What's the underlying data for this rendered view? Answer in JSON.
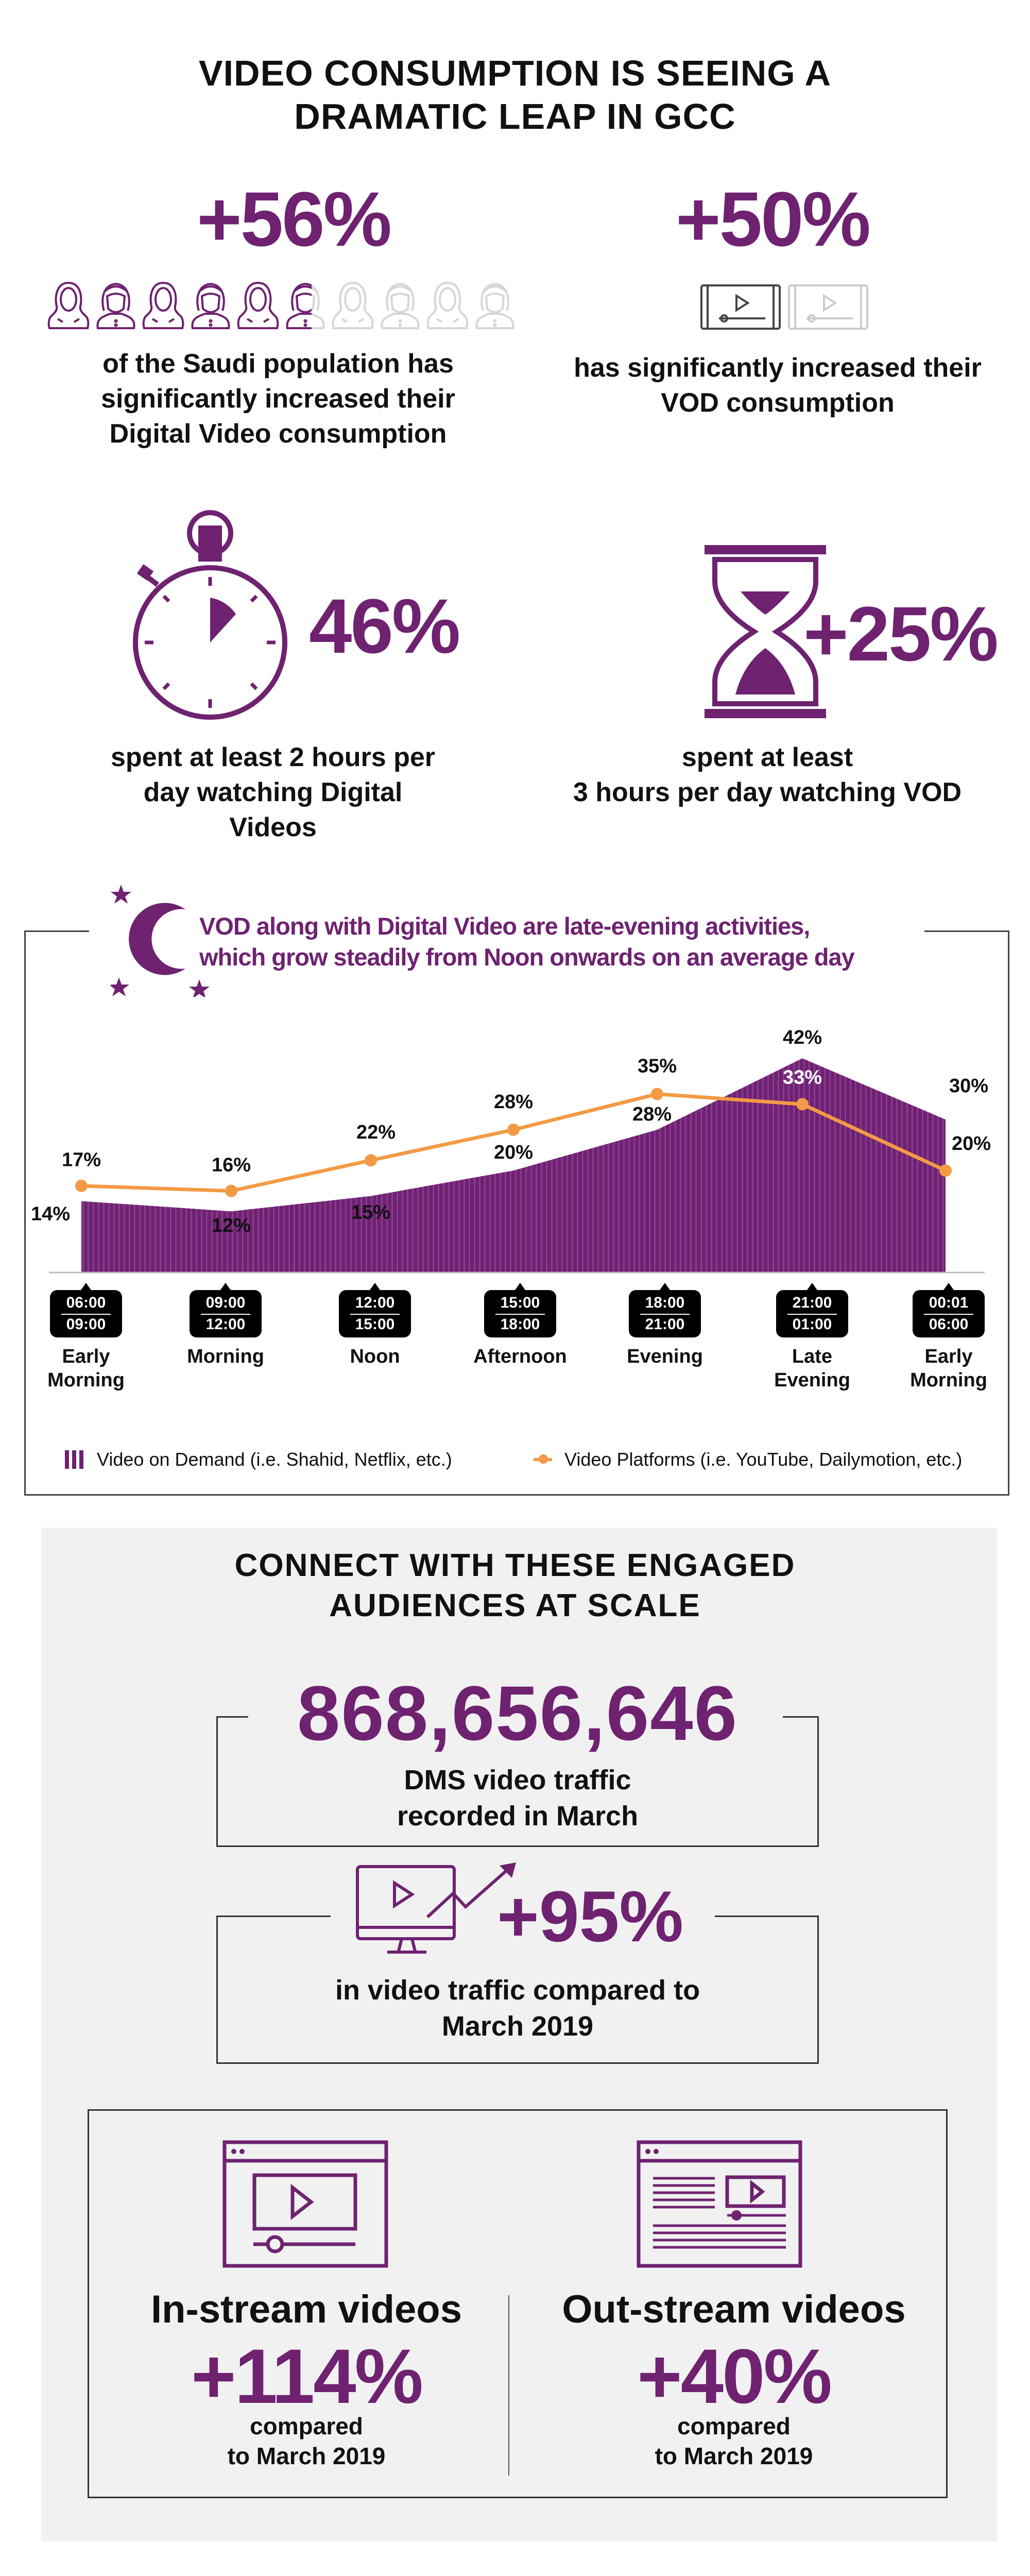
{
  "header": {
    "title_line1": "VIDEO CONSUMPTION IS SEEING A",
    "title_line2": "DRAMATIC LEAP IN GCC"
  },
  "stats": {
    "digital_video": {
      "value": "+56%",
      "fill_percent": 56,
      "line1": "of the Saudi population has",
      "line2": "significantly increased their",
      "line3": "Digital Video consumption",
      "icon": "people-icon"
    },
    "vod": {
      "value": "+50%",
      "fill_percent": 50,
      "line1": "has significantly increased their",
      "line2": "VOD consumption",
      "icon": "tablet-video-icon"
    },
    "two_hours": {
      "value": "46%",
      "line1": "spent at least 2 hours per",
      "line2": "day watching Digital",
      "line3": "Videos",
      "icon": "stopwatch-icon"
    },
    "three_hours": {
      "value": "+25%",
      "line1": "spent at least",
      "line2": "3 hours per day watching VOD",
      "icon": "hourglass-icon"
    }
  },
  "chart_data": {
    "type": "area+line",
    "title_line1": "VOD along with Digital Video are late-evening activities,",
    "title_line2": "which grow steadily from Noon onwards on an average day",
    "categories": [
      "Early Morning",
      "Morning",
      "Noon",
      "Afternoon",
      "Evening",
      "Late Evening",
      "Early Morning"
    ],
    "time_ranges": [
      [
        "06:00",
        "09:00"
      ],
      [
        "09:00",
        "12:00"
      ],
      [
        "12:00",
        "15:00"
      ],
      [
        "15:00",
        "18:00"
      ],
      [
        "18:00",
        "21:00"
      ],
      [
        "21:00",
        "01:00"
      ],
      [
        "00:01",
        "06:00"
      ]
    ],
    "series": [
      {
        "name": "Video on Demand (i.e. Shahid, Netflix, etc.)",
        "type": "area",
        "color": "#6e2270",
        "values": [
          14,
          12,
          15,
          20,
          28,
          42,
          30
        ],
        "labels": [
          "14%",
          "12%",
          "15%",
          "20%",
          "28%",
          "42%",
          "30%"
        ]
      },
      {
        "name": "Video Platforms (i.e. YouTube, Dailymotion, etc.)",
        "type": "line",
        "color": "#f39a45",
        "values": [
          17,
          16,
          22,
          28,
          35,
          33,
          20
        ],
        "labels": [
          "17%",
          "16%",
          "22%",
          "28%",
          "35%",
          "33%",
          "20%"
        ]
      }
    ],
    "ylim": [
      0,
      45
    ],
    "legend_position": "bottom"
  },
  "audiences": {
    "title_line1": "CONNECT WITH THESE ENGAGED",
    "title_line2": "AUDIENCES AT SCALE",
    "traffic": {
      "value": "868,656,646",
      "line1": "DMS video traffic",
      "line2": "recorded in March"
    },
    "growth": {
      "value": "+95%",
      "line1": "in video traffic compared to",
      "line2": "March 2019",
      "icon": "monitor-growth-icon"
    },
    "instream": {
      "title": "In-stream videos",
      "value": "+114%",
      "line1": "compared",
      "line2": "to March 2019",
      "icon": "browser-video-icon"
    },
    "outstream": {
      "title": "Out-stream videos",
      "value": "+40%",
      "line1": "compared",
      "line2": "to March 2019",
      "icon": "browser-article-video-icon"
    }
  },
  "colors": {
    "purple": "#6e2270",
    "orange": "#f39a45",
    "panel": "#f1f1f1"
  }
}
